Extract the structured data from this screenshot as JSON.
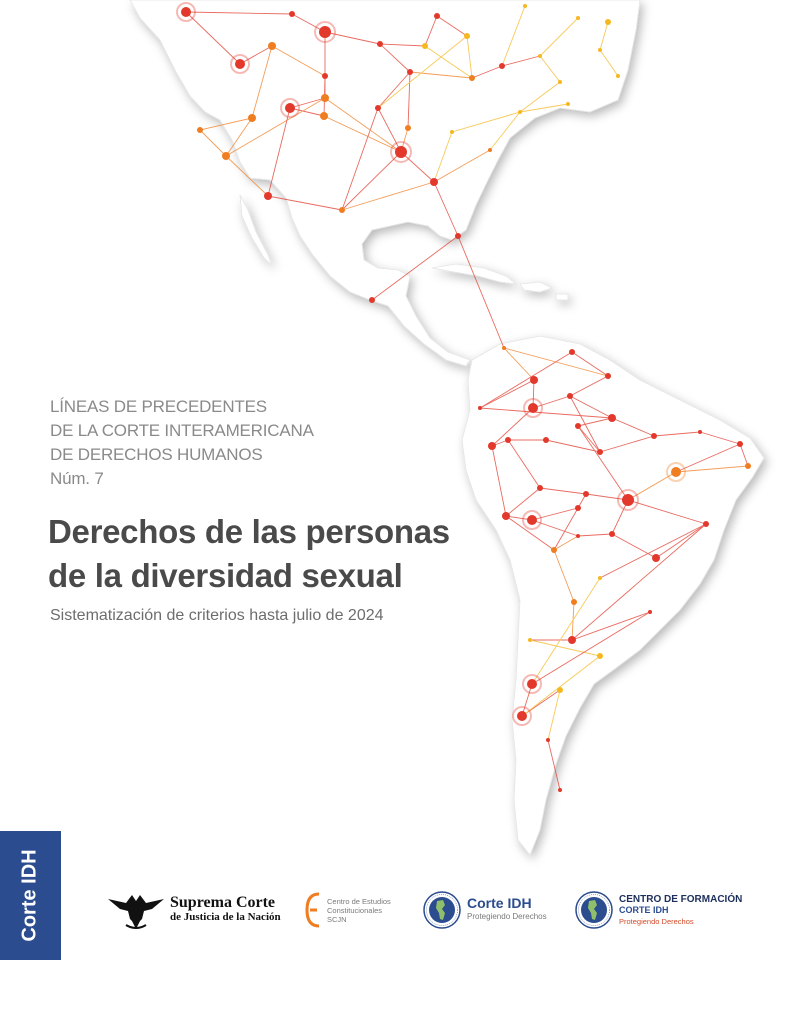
{
  "series": {
    "line1": "LÍNEAS DE PRECEDENTES",
    "line2": "DE LA CORTE INTERAMERICANA",
    "line3": "DE DERECHOS HUMANOS",
    "number": "Núm. 7"
  },
  "title": {
    "line1": "Derechos de las personas",
    "line2": "de la diversidad sexual"
  },
  "subtitle": "Sistematización de criterios hasta julio de 2024",
  "side_tab": "Corte IDH",
  "logos": {
    "scjn": {
      "line1": "Suprema Corte",
      "line2": "de Justicia de la Nación",
      "icon": "eagle-icon"
    },
    "cec": {
      "line1": "Centro de Estudios",
      "line2": "Constitucionales",
      "line3": "SCJN",
      "icon": "cec-mark-icon"
    },
    "cidh": {
      "name": "Corte IDH",
      "tagline": "Protegiendo Derechos",
      "icon": "globe-seal-icon"
    },
    "cf": {
      "line1": "CENTRO DE FORMACIÓN",
      "line2": "CORTE IDH",
      "line3": "Protegiendo Derechos",
      "icon": "globe-seal-icon"
    }
  },
  "colors": {
    "red": "#e2392c",
    "orange": "#ef7d22",
    "yellow": "#f5b820",
    "corte_blue": "#2b4c8f",
    "title_gray": "#4a4a4a"
  }
}
